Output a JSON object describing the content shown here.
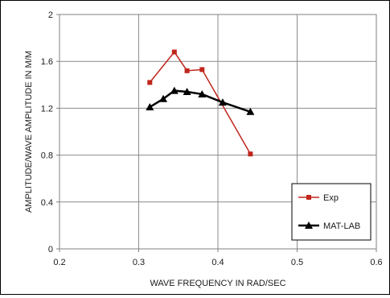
{
  "chart_data": {
    "type": "line",
    "xlabel": "WAVE FREQUENCY IN RAD/SEC",
    "ylabel": "AMPLITUDE/WAVE AMPLITUDE IN M/M",
    "xlim": [
      0.2,
      0.6
    ],
    "ylim": [
      0,
      2
    ],
    "x_ticks": [
      "0.2",
      "0.3",
      "0.4",
      "0.5",
      "0.6"
    ],
    "y_ticks": [
      "0",
      "0.4",
      "0.8",
      "1.2",
      "1.6",
      "2"
    ],
    "grid": true,
    "legend_position": "bottom-right",
    "series": [
      {
        "name": "Exp",
        "color": "#c0261c",
        "marker": "square",
        "x": [
          0.314,
          0.345,
          0.361,
          0.38,
          0.441
        ],
        "y": [
          1.42,
          1.68,
          1.52,
          1.53,
          0.81
        ]
      },
      {
        "name": "MAT-LAB",
        "color": "#000000",
        "marker": "triangle",
        "x": [
          0.314,
          0.331,
          0.345,
          0.361,
          0.38,
          0.406,
          0.441
        ],
        "y": [
          1.21,
          1.28,
          1.35,
          1.34,
          1.32,
          1.25,
          1.17
        ]
      }
    ]
  }
}
